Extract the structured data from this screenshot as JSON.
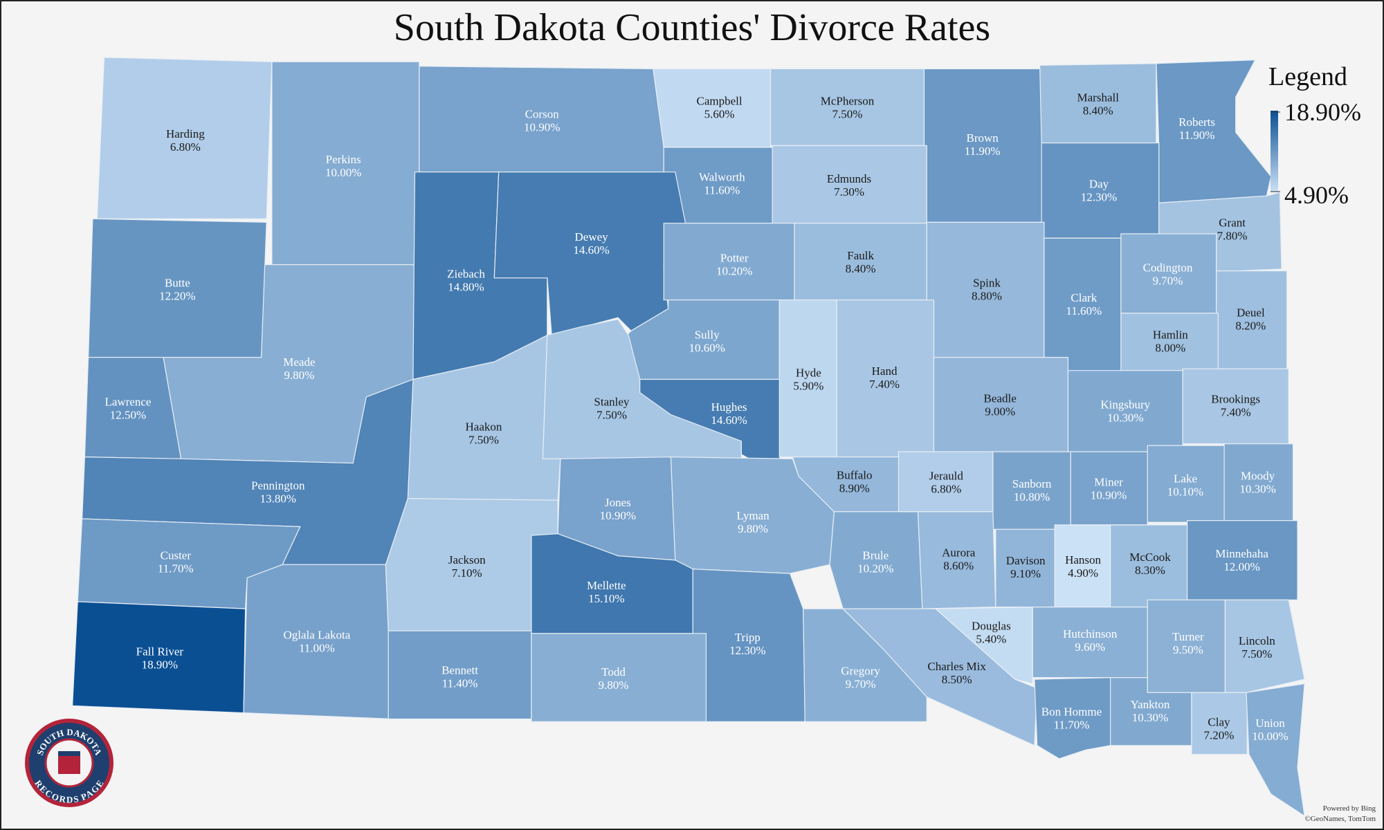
{
  "title": "South Dakota Counties' Divorce Rates",
  "legend": {
    "title": "Legend",
    "max": {
      "value": 18.9,
      "label": "18.90%"
    },
    "min": {
      "value": 4.9,
      "label": "4.90%"
    },
    "min_color": "#cbe1f6",
    "max_color": "#0b4f93"
  },
  "counties": [
    {
      "name": "Harding",
      "value": 6.8,
      "label": "6.80%"
    },
    {
      "name": "Perkins",
      "value": 10.0,
      "label": "10.00%"
    },
    {
      "name": "Corson",
      "value": 10.9,
      "label": "10.90%"
    },
    {
      "name": "Campbell",
      "value": 5.6,
      "label": "5.60%"
    },
    {
      "name": "McPherson",
      "value": 7.5,
      "label": "7.50%"
    },
    {
      "name": "Brown",
      "value": 11.9,
      "label": "11.90%"
    },
    {
      "name": "Marshall",
      "value": 8.4,
      "label": "8.40%"
    },
    {
      "name": "Roberts",
      "value": 11.9,
      "label": "11.90%"
    },
    {
      "name": "Walworth",
      "value": 11.6,
      "label": "11.60%"
    },
    {
      "name": "Edmunds",
      "value": 7.3,
      "label": "7.30%"
    },
    {
      "name": "Day",
      "value": 12.3,
      "label": "12.30%"
    },
    {
      "name": "Grant",
      "value": 7.8,
      "label": "7.80%"
    },
    {
      "name": "Butte",
      "value": 12.2,
      "label": "12.20%"
    },
    {
      "name": "Meade",
      "value": 9.8,
      "label": "9.80%"
    },
    {
      "name": "Ziebach",
      "value": 14.8,
      "label": "14.80%"
    },
    {
      "name": "Dewey",
      "value": 14.6,
      "label": "14.60%"
    },
    {
      "name": "Potter",
      "value": 10.2,
      "label": "10.20%"
    },
    {
      "name": "Faulk",
      "value": 8.4,
      "label": "8.40%"
    },
    {
      "name": "Spink",
      "value": 8.8,
      "label": "8.80%"
    },
    {
      "name": "Clark",
      "value": 11.6,
      "label": "11.60%"
    },
    {
      "name": "Codington",
      "value": 9.7,
      "label": "9.70%"
    },
    {
      "name": "Deuel",
      "value": 8.2,
      "label": "8.20%"
    },
    {
      "name": "Hamlin",
      "value": 8.0,
      "label": "8.00%"
    },
    {
      "name": "Sully",
      "value": 10.6,
      "label": "10.60%"
    },
    {
      "name": "Hyde",
      "value": 5.9,
      "label": "5.90%"
    },
    {
      "name": "Hand",
      "value": 7.4,
      "label": "7.40%"
    },
    {
      "name": "Beadle",
      "value": 9.0,
      "label": "9.00%"
    },
    {
      "name": "Kingsbury",
      "value": 10.3,
      "label": "10.30%"
    },
    {
      "name": "Brookings",
      "value": 7.4,
      "label": "7.40%"
    },
    {
      "name": "Lawrence",
      "value": 12.5,
      "label": "12.50%"
    },
    {
      "name": "Haakon",
      "value": 7.5,
      "label": "7.50%"
    },
    {
      "name": "Stanley",
      "value": 7.5,
      "label": "7.50%"
    },
    {
      "name": "Hughes",
      "value": 14.6,
      "label": "14.60%"
    },
    {
      "name": "Pennington",
      "value": 13.8,
      "label": "13.80%"
    },
    {
      "name": "Custer",
      "value": 11.7,
      "label": "11.70%"
    },
    {
      "name": "Fall River",
      "value": 18.9,
      "label": "18.90%"
    },
    {
      "name": "Oglala Lakota",
      "value": 11.0,
      "label": "11.00%"
    },
    {
      "name": "Jackson",
      "value": 7.1,
      "label": "7.10%"
    },
    {
      "name": "Jones",
      "value": 10.9,
      "label": "10.90%"
    },
    {
      "name": "Lyman",
      "value": 9.8,
      "label": "9.80%"
    },
    {
      "name": "Buffalo",
      "value": 8.9,
      "label": "8.90%"
    },
    {
      "name": "Jerauld",
      "value": 6.8,
      "label": "6.80%"
    },
    {
      "name": "Sanborn",
      "value": 10.8,
      "label": "10.80%"
    },
    {
      "name": "Miner",
      "value": 10.9,
      "label": "10.90%"
    },
    {
      "name": "Lake",
      "value": 10.1,
      "label": "10.10%"
    },
    {
      "name": "Moody",
      "value": 10.3,
      "label": "10.30%"
    },
    {
      "name": "Mellette",
      "value": 15.1,
      "label": "15.10%"
    },
    {
      "name": "Brule",
      "value": 10.2,
      "label": "10.20%"
    },
    {
      "name": "Aurora",
      "value": 8.6,
      "label": "8.60%"
    },
    {
      "name": "Davison",
      "value": 9.1,
      "label": "9.10%"
    },
    {
      "name": "Hanson",
      "value": 4.9,
      "label": "4.90%"
    },
    {
      "name": "McCook",
      "value": 8.3,
      "label": "8.30%"
    },
    {
      "name": "Minnehaha",
      "value": 12.0,
      "label": "12.00%"
    },
    {
      "name": "Tripp",
      "value": 12.3,
      "label": "12.30%"
    },
    {
      "name": "Gregory",
      "value": 9.7,
      "label": "9.70%"
    },
    {
      "name": "Charles Mix",
      "value": 8.5,
      "label": "8.50%"
    },
    {
      "name": "Douglas",
      "value": 5.4,
      "label": "5.40%"
    },
    {
      "name": "Hutchinson",
      "value": 9.6,
      "label": "9.60%"
    },
    {
      "name": "Turner",
      "value": 9.5,
      "label": "9.50%"
    },
    {
      "name": "Lincoln",
      "value": 7.5,
      "label": "7.50%"
    },
    {
      "name": "Bennett",
      "value": 11.4,
      "label": "11.40%"
    },
    {
      "name": "Todd",
      "value": 9.8,
      "label": "9.80%"
    },
    {
      "name": "Bon Homme",
      "value": 11.7,
      "label": "11.70%"
    },
    {
      "name": "Yankton",
      "value": 10.3,
      "label": "10.30%"
    },
    {
      "name": "Clay",
      "value": 7.2,
      "label": "7.20%"
    },
    {
      "name": "Union",
      "value": 10.0,
      "label": "10.00%"
    }
  ],
  "logo": {
    "top": "SOUTH DAKOTA",
    "bottom": "RECORDS PAGE"
  },
  "attribution": [
    "Powered by Bing",
    "©GeoNames, TomTom"
  ]
}
